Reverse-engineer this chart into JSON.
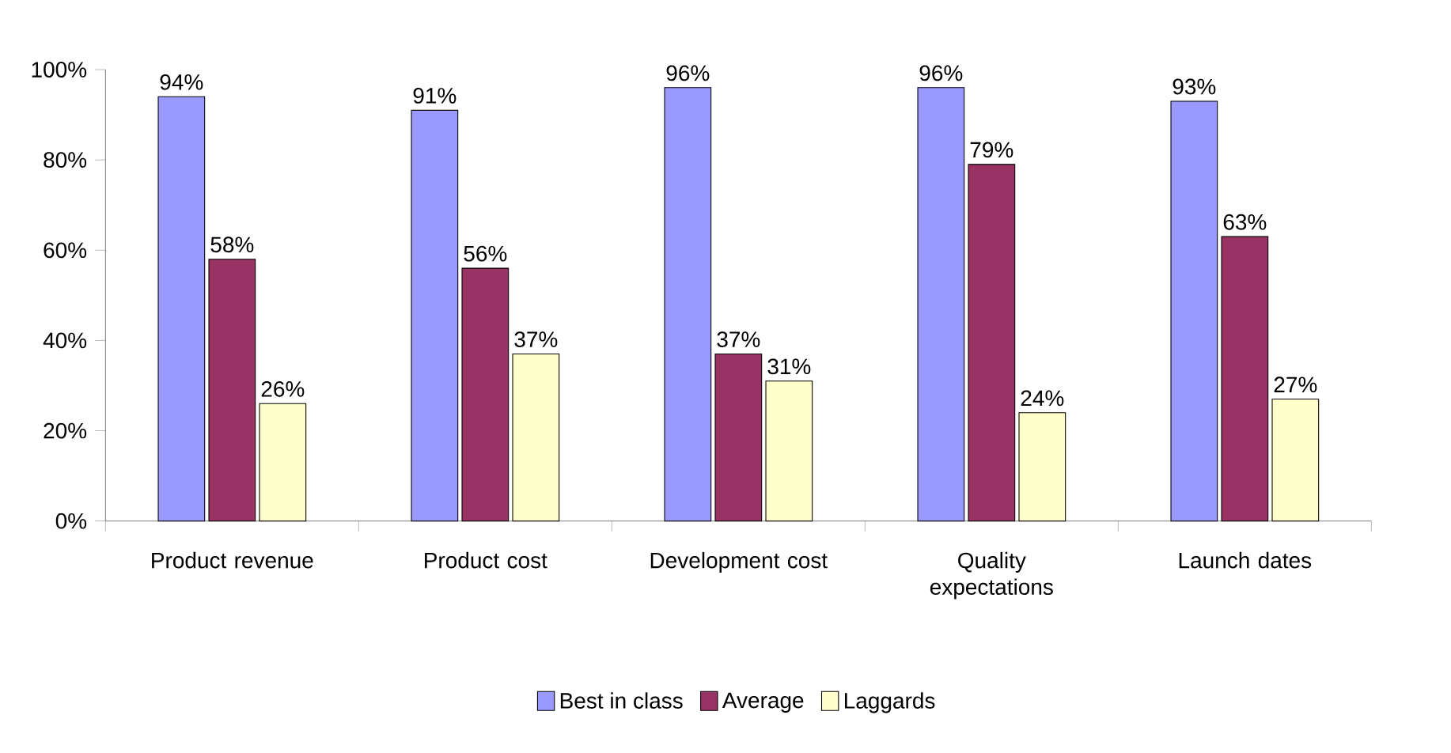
{
  "chart_data": {
    "type": "bar",
    "categories": [
      "Product revenue",
      "Product cost",
      "Development cost",
      "Quality expectations",
      "Launch dates"
    ],
    "series": [
      {
        "name": "Best in class",
        "color": "#9999ff",
        "values": [
          94,
          91,
          96,
          96,
          93
        ],
        "value_labels": [
          "94%",
          "91%",
          "96%",
          "96%",
          "93%"
        ]
      },
      {
        "name": "Average",
        "color": "#993366",
        "values": [
          58,
          56,
          37,
          79,
          63
        ],
        "value_labels": [
          "58%",
          "56%",
          "37%",
          "79%",
          "63%"
        ]
      },
      {
        "name": "Laggards",
        "color": "#ffffcc",
        "values": [
          26,
          37,
          31,
          24,
          27
        ],
        "value_labels": [
          "26%",
          "37%",
          "31%",
          "24%",
          "27%"
        ]
      }
    ],
    "ylim": [
      0,
      100
    ],
    "yticks": [
      {
        "value": 0,
        "label": "0%"
      },
      {
        "value": 20,
        "label": "20%"
      },
      {
        "value": 40,
        "label": "40%"
      },
      {
        "value": 60,
        "label": "60%"
      },
      {
        "value": 80,
        "label": "80%"
      },
      {
        "value": 100,
        "label": "100%"
      }
    ],
    "legend": "bottom"
  }
}
